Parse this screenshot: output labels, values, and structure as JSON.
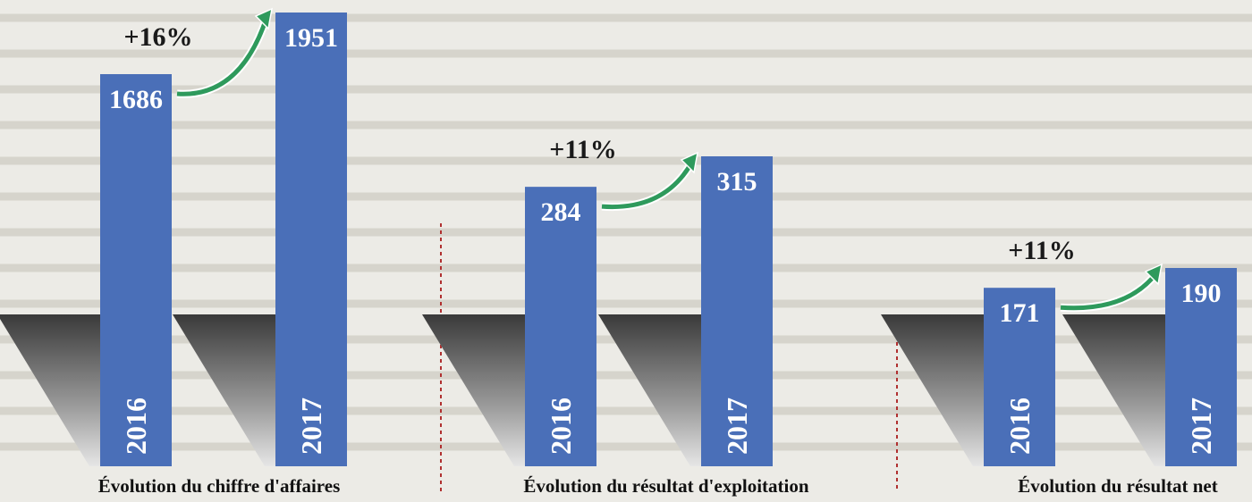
{
  "chart_data": [
    {
      "type": "bar",
      "title": "Évolution du chiffre d'affaires",
      "categories": [
        "2016",
        "2017"
      ],
      "values": [
        1686,
        1951
      ],
      "annotation": "+16%",
      "color": "#4a6fb8"
    },
    {
      "type": "bar",
      "title": "Évolution du résultat d'exploitation",
      "categories": [
        "2016",
        "2017"
      ],
      "values": [
        284,
        315
      ],
      "annotation": "+11%",
      "color": "#4a6fb8"
    },
    {
      "type": "bar",
      "title": "Évolution du résultat net",
      "categories": [
        "2016",
        "2017"
      ],
      "values": [
        171,
        190
      ],
      "annotation": "+11%",
      "color": "#4a6fb8"
    }
  ]
}
